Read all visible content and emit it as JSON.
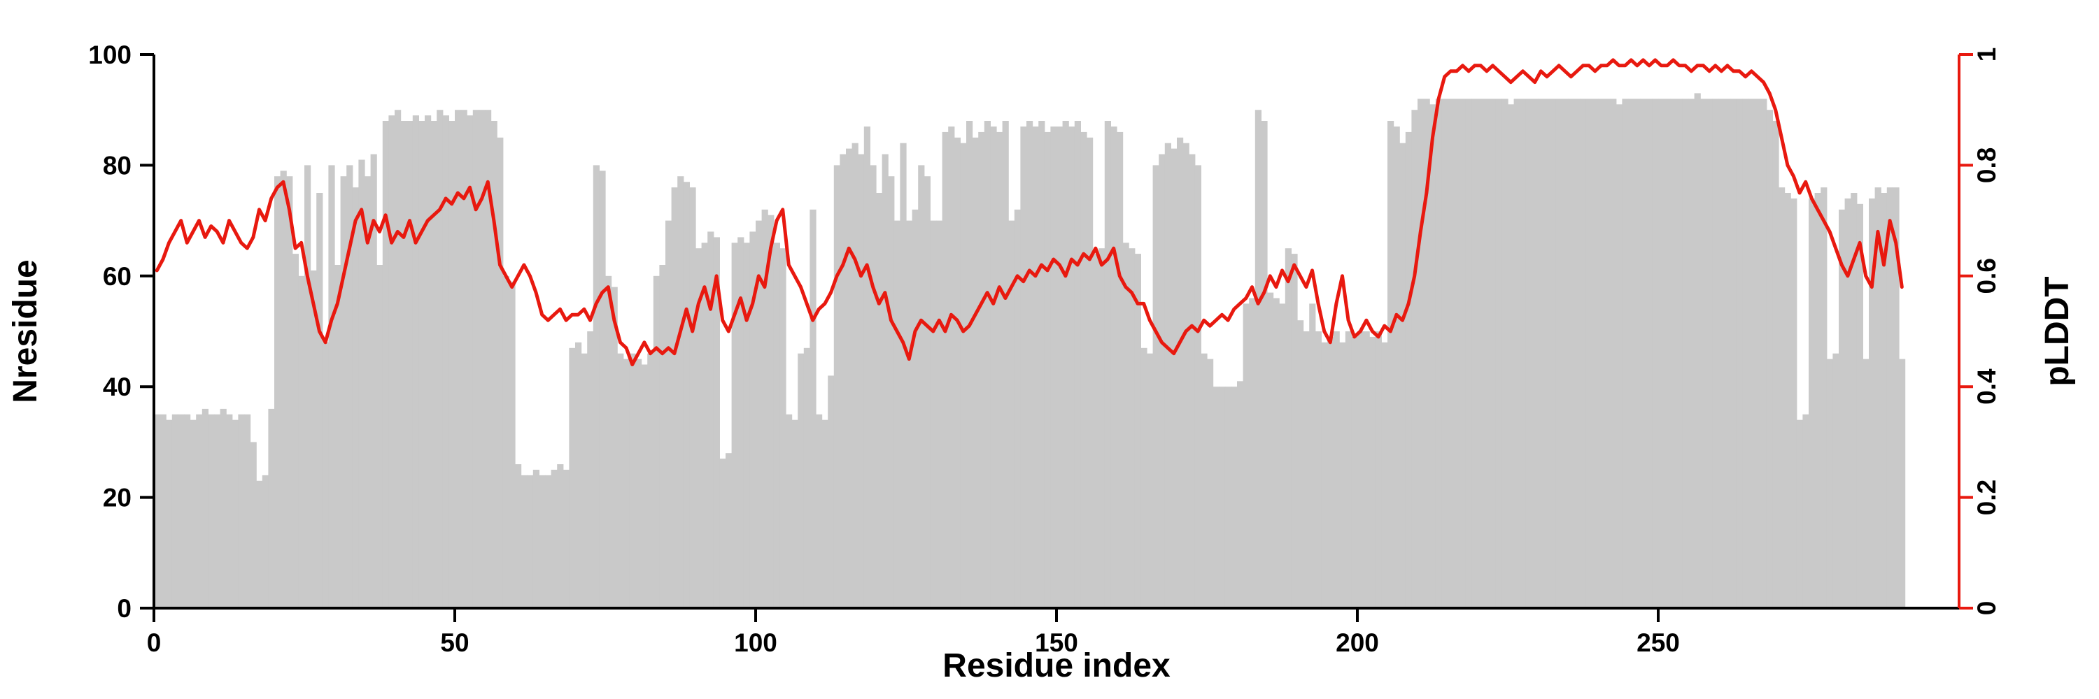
{
  "page": {
    "background_color": "#ffffff"
  },
  "chart_data": {
    "type": "bar",
    "title": "",
    "xlabel": "Residue index",
    "ylabel_left": "Nresidue",
    "ylabel_right": "pLDDT",
    "x_ticks": [
      0,
      50,
      100,
      150,
      200,
      250
    ],
    "y_left_ticks": [
      0,
      20,
      40,
      60,
      80,
      100
    ],
    "y_right_ticks": [
      0,
      0.2,
      0.4,
      0.6,
      0.8,
      1
    ],
    "xlim": [
      0,
      300
    ],
    "ylim_left": [
      0,
      100
    ],
    "ylim_right": [
      0,
      1
    ],
    "grid": false,
    "legend": "none",
    "bar_color": "#c9c9c9",
    "line_color": "#e8190f",
    "axis_color": "#000000",
    "x_start": 0,
    "x_step": 1,
    "series": [
      {
        "name": "Nresidue",
        "type": "bar",
        "axis": "left",
        "values": [
          35,
          35,
          34,
          35,
          35,
          35,
          34,
          35,
          36,
          35,
          35,
          36,
          35,
          34,
          35,
          35,
          30,
          23,
          24,
          36,
          78,
          79,
          78,
          64,
          60,
          80,
          61,
          75,
          48,
          80,
          62,
          78,
          80,
          76,
          81,
          78,
          82,
          62,
          88,
          89,
          90,
          88,
          88,
          89,
          88,
          89,
          88,
          90,
          89,
          88,
          90,
          90,
          89,
          90,
          90,
          90,
          88,
          85,
          60,
          59,
          26,
          24,
          24,
          25,
          24,
          24,
          25,
          26,
          25,
          47,
          48,
          46,
          50,
          80,
          79,
          60,
          58,
          46,
          45,
          46,
          45,
          44,
          46,
          60,
          62,
          70,
          76,
          78,
          77,
          76,
          65,
          66,
          68,
          67,
          27,
          28,
          66,
          67,
          66,
          68,
          70,
          72,
          71,
          66,
          65,
          35,
          34,
          46,
          47,
          72,
          35,
          34,
          42,
          80,
          82,
          83,
          84,
          82,
          87,
          80,
          75,
          82,
          78,
          70,
          84,
          70,
          72,
          80,
          78,
          70,
          70,
          86,
          87,
          85,
          84,
          88,
          85,
          86,
          88,
          87,
          86,
          88,
          70,
          72,
          87,
          88,
          87,
          88,
          86,
          87,
          87,
          88,
          87,
          88,
          86,
          85,
          64,
          65,
          88,
          87,
          86,
          66,
          65,
          64,
          47,
          46,
          80,
          82,
          84,
          83,
          85,
          84,
          82,
          80,
          46,
          45,
          40,
          40,
          40,
          40,
          41,
          55,
          56,
          90,
          88,
          57,
          56,
          55,
          65,
          64,
          52,
          50,
          55,
          50,
          48,
          49,
          50,
          48,
          50,
          49,
          50,
          50,
          49,
          50,
          48,
          88,
          87,
          84,
          86,
          90,
          92,
          92,
          91,
          92,
          92,
          92,
          92,
          92,
          92,
          92,
          92,
          92,
          92,
          92,
          92,
          91,
          92,
          92,
          92,
          92,
          92,
          92,
          92,
          92,
          92,
          92,
          92,
          92,
          92,
          92,
          92,
          92,
          92,
          91,
          92,
          92,
          92,
          92,
          92,
          92,
          92,
          92,
          92,
          92,
          92,
          92,
          93,
          92,
          92,
          92,
          92,
          92,
          92,
          92,
          92,
          92,
          92,
          92,
          90,
          88,
          76,
          75,
          74,
          34,
          35,
          74,
          75,
          76,
          45,
          46,
          72,
          74,
          75,
          73,
          45,
          74,
          76,
          75,
          76,
          76,
          45
        ]
      },
      {
        "name": "pLDDT",
        "type": "line",
        "axis": "right",
        "values": [
          0.61,
          0.63,
          0.66,
          0.68,
          0.7,
          0.66,
          0.68,
          0.7,
          0.67,
          0.69,
          0.68,
          0.66,
          0.7,
          0.68,
          0.66,
          0.65,
          0.67,
          0.72,
          0.7,
          0.74,
          0.76,
          0.77,
          0.72,
          0.65,
          0.66,
          0.6,
          0.55,
          0.5,
          0.48,
          0.52,
          0.55,
          0.6,
          0.65,
          0.7,
          0.72,
          0.66,
          0.7,
          0.68,
          0.71,
          0.66,
          0.68,
          0.67,
          0.7,
          0.66,
          0.68,
          0.7,
          0.71,
          0.72,
          0.74,
          0.73,
          0.75,
          0.74,
          0.76,
          0.72,
          0.74,
          0.77,
          0.7,
          0.62,
          0.6,
          0.58,
          0.6,
          0.62,
          0.6,
          0.57,
          0.53,
          0.52,
          0.53,
          0.54,
          0.52,
          0.53,
          0.53,
          0.54,
          0.52,
          0.55,
          0.57,
          0.58,
          0.52,
          0.48,
          0.47,
          0.44,
          0.46,
          0.48,
          0.46,
          0.47,
          0.46,
          0.47,
          0.46,
          0.5,
          0.54,
          0.5,
          0.55,
          0.58,
          0.54,
          0.6,
          0.52,
          0.5,
          0.53,
          0.56,
          0.52,
          0.55,
          0.6,
          0.58,
          0.65,
          0.7,
          0.72,
          0.62,
          0.6,
          0.58,
          0.55,
          0.52,
          0.54,
          0.55,
          0.57,
          0.6,
          0.62,
          0.65,
          0.63,
          0.6,
          0.62,
          0.58,
          0.55,
          0.57,
          0.52,
          0.5,
          0.48,
          0.45,
          0.5,
          0.52,
          0.51,
          0.5,
          0.52,
          0.5,
          0.53,
          0.52,
          0.5,
          0.51,
          0.53,
          0.55,
          0.57,
          0.55,
          0.58,
          0.56,
          0.58,
          0.6,
          0.59,
          0.61,
          0.6,
          0.62,
          0.61,
          0.63,
          0.62,
          0.6,
          0.63,
          0.62,
          0.64,
          0.63,
          0.65,
          0.62,
          0.63,
          0.65,
          0.6,
          0.58,
          0.57,
          0.55,
          0.55,
          0.52,
          0.5,
          0.48,
          0.47,
          0.46,
          0.48,
          0.5,
          0.51,
          0.5,
          0.52,
          0.51,
          0.52,
          0.53,
          0.52,
          0.54,
          0.55,
          0.56,
          0.58,
          0.55,
          0.57,
          0.6,
          0.58,
          0.61,
          0.59,
          0.62,
          0.6,
          0.58,
          0.61,
          0.55,
          0.5,
          0.48,
          0.55,
          0.6,
          0.52,
          0.49,
          0.5,
          0.52,
          0.5,
          0.49,
          0.51,
          0.5,
          0.53,
          0.52,
          0.55,
          0.6,
          0.68,
          0.75,
          0.85,
          0.92,
          0.96,
          0.97,
          0.97,
          0.98,
          0.97,
          0.98,
          0.98,
          0.97,
          0.98,
          0.97,
          0.96,
          0.95,
          0.96,
          0.97,
          0.96,
          0.95,
          0.97,
          0.96,
          0.97,
          0.98,
          0.97,
          0.96,
          0.97,
          0.98,
          0.98,
          0.97,
          0.98,
          0.98,
          0.99,
          0.98,
          0.98,
          0.99,
          0.98,
          0.99,
          0.98,
          0.99,
          0.98,
          0.98,
          0.99,
          0.98,
          0.98,
          0.97,
          0.98,
          0.98,
          0.97,
          0.98,
          0.97,
          0.98,
          0.97,
          0.97,
          0.96,
          0.97,
          0.96,
          0.95,
          0.93,
          0.9,
          0.85,
          0.8,
          0.78,
          0.75,
          0.77,
          0.74,
          0.72,
          0.7,
          0.68,
          0.65,
          0.62,
          0.6,
          0.63,
          0.66,
          0.6,
          0.58,
          0.68,
          0.62,
          0.7,
          0.66,
          0.58
        ]
      }
    ]
  }
}
